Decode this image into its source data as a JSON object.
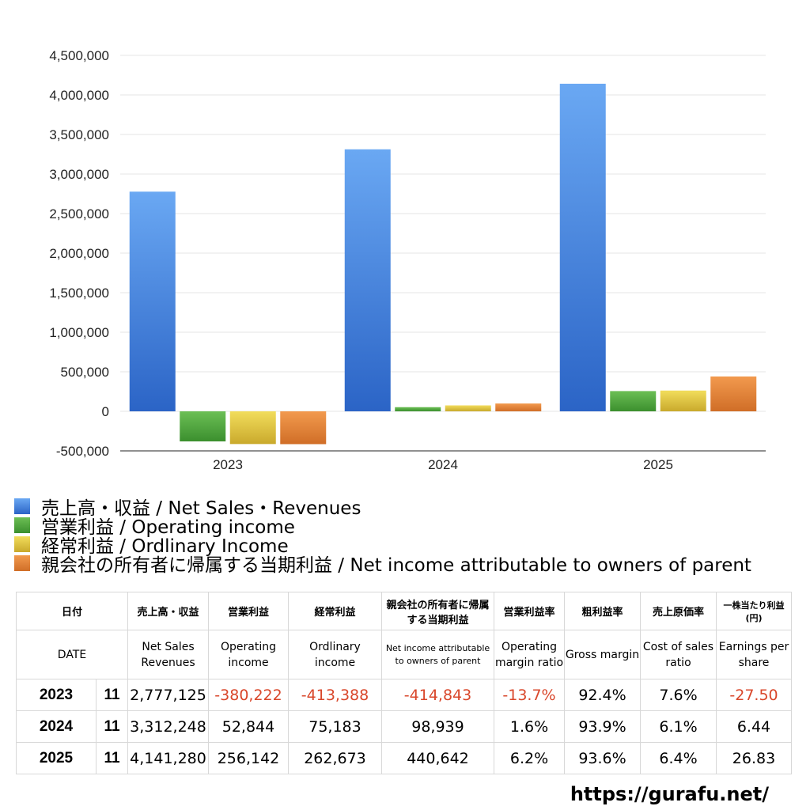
{
  "chart_data": {
    "type": "bar",
    "categories": [
      "2023",
      "2024",
      "2025"
    ],
    "series": [
      {
        "name": "売上高・収益 / Net Sales・Revenues",
        "values": [
          2777125,
          3312248,
          4141280
        ]
      },
      {
        "name": "営業利益 / Operating income",
        "values": [
          -380222,
          52844,
          256142
        ]
      },
      {
        "name": "経常利益 / Ordlinary Income",
        "values": [
          -413388,
          75183,
          262673
        ]
      },
      {
        "name": "親会社の所有者に帰属する当期利益 / Net income attributable to owners of parent",
        "values": [
          -414843,
          98939,
          440642
        ]
      }
    ],
    "ylim": [
      -500000,
      4500000
    ],
    "yticks": [
      -500000,
      0,
      500000,
      1000000,
      1500000,
      2000000,
      2500000,
      3000000,
      3500000,
      4000000,
      4500000
    ],
    "ytick_labels": [
      "-500,000",
      "0",
      "500,000",
      "1,000,000",
      "1,500,000",
      "2,000,000",
      "2,500,000",
      "3,000,000",
      "3,500,000",
      "4,000,000",
      "4,500,000"
    ],
    "legend_position": "bottom",
    "grid": true
  },
  "colors": {
    "series": [
      {
        "top": "#6aa8f3",
        "bottom": "#2b64c6"
      },
      {
        "top": "#6cbf55",
        "bottom": "#3b8f2e"
      },
      {
        "top": "#f2dd5c",
        "bottom": "#c9a92c"
      },
      {
        "top": "#f29a4e",
        "bottom": "#d06e27"
      }
    ],
    "negative": "#d9472b",
    "grid": "#e6e6e6"
  },
  "table": {
    "header_jp": [
      "日付",
      "売上高・収益",
      "営業利益",
      "経常利益",
      "親会社の所有者に帰属する当期利益",
      "営業利益率",
      "粗利益率",
      "売上原価率",
      "一株当たり利益(円)"
    ],
    "header_en": [
      "DATE",
      "Net Sales Revenues",
      "Operating income",
      "Ordlinary income",
      "Net income attributable to owners of parent",
      "Operating margin ratio",
      "Gross margin",
      "Cost of sales ratio",
      "Earnings per share"
    ],
    "rows": [
      {
        "year": "2023",
        "month": "11",
        "cells": [
          "2,777,125",
          "-380,222",
          "-413,388",
          "-414,843",
          "-13.7%",
          "92.4%",
          "7.6%",
          "-27.50"
        ]
      },
      {
        "year": "2024",
        "month": "11",
        "cells": [
          "3,312,248",
          "52,844",
          "75,183",
          "98,939",
          "1.6%",
          "93.9%",
          "6.1%",
          "6.44"
        ]
      },
      {
        "year": "2025",
        "month": "11",
        "cells": [
          "4,141,280",
          "256,142",
          "262,673",
          "440,642",
          "6.2%",
          "93.6%",
          "6.4%",
          "26.83"
        ]
      }
    ]
  },
  "site_url": "https://gurafu.net/"
}
